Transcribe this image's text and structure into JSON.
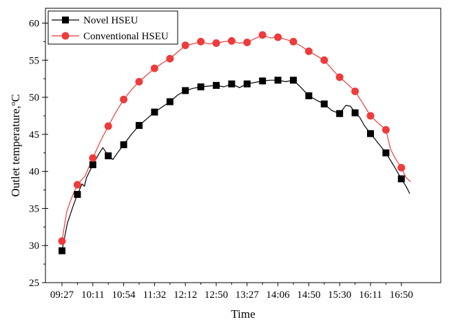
{
  "chart_data": {
    "type": "line",
    "xlabel": "Time",
    "ylabel": "Outlet temperature,",
    "ylabel_unit": "oC",
    "ylabel_sup": "o",
    "ylabel_tail": "C",
    "ylim": [
      25,
      62
    ],
    "yticks": [
      25,
      30,
      35,
      40,
      45,
      50,
      55,
      60
    ],
    "xtick_labels": [
      "09:27",
      "10:11",
      "10:54",
      "11:32",
      "12:12",
      "12:50",
      "13:27",
      "14:06",
      "14:50",
      "15:30",
      "16:11",
      "16:50"
    ],
    "grid": false,
    "legend_position": "top-left",
    "series": [
      {
        "name": "Novel HSEU",
        "color": "#000000",
        "marker": "square",
        "markers": [
          [
            0,
            29.3
          ],
          [
            1,
            36.9
          ],
          [
            2,
            40.9
          ],
          [
            3,
            42.1
          ],
          [
            4,
            43.6
          ],
          [
            5,
            46.2
          ],
          [
            6,
            48.0
          ],
          [
            7,
            49.4
          ],
          [
            8,
            50.9
          ],
          [
            9,
            51.4
          ],
          [
            10,
            51.6
          ],
          [
            11,
            51.8
          ],
          [
            12,
            51.8
          ],
          [
            13,
            52.2
          ],
          [
            14,
            52.3
          ],
          [
            15,
            52.3
          ],
          [
            16,
            50.2
          ],
          [
            17,
            49.1
          ],
          [
            18,
            47.8
          ],
          [
            19,
            47.9
          ],
          [
            20,
            45.1
          ],
          [
            21,
            42.5
          ],
          [
            22,
            39.0
          ]
        ],
        "line": [
          [
            0,
            29.3
          ],
          [
            0.35,
            33.0
          ],
          [
            0.7,
            35.2
          ],
          [
            1,
            36.9
          ],
          [
            1.3,
            38.3
          ],
          [
            1.45,
            38.0
          ],
          [
            1.6,
            39.2
          ],
          [
            2,
            40.9
          ],
          [
            2.4,
            42.4
          ],
          [
            2.65,
            43.2
          ],
          [
            2.85,
            42.6
          ],
          [
            3,
            42.1
          ],
          [
            3.3,
            41.6
          ],
          [
            3.6,
            42.5
          ],
          [
            4,
            43.6
          ],
          [
            4.5,
            45.0
          ],
          [
            5,
            46.2
          ],
          [
            5.5,
            47.1
          ],
          [
            6,
            48.0
          ],
          [
            6.5,
            48.7
          ],
          [
            7,
            49.4
          ],
          [
            7.5,
            50.3
          ],
          [
            8,
            50.9
          ],
          [
            8.5,
            51.2
          ],
          [
            9,
            51.4
          ],
          [
            9.5,
            51.5
          ],
          [
            10,
            51.6
          ],
          [
            10.5,
            51.4
          ],
          [
            11,
            51.8
          ],
          [
            11.5,
            51.3
          ],
          [
            12,
            51.8
          ],
          [
            12.5,
            52.0
          ],
          [
            13,
            52.2
          ],
          [
            13.5,
            52.3
          ],
          [
            14,
            52.3
          ],
          [
            14.5,
            52.1
          ],
          [
            15,
            52.3
          ],
          [
            15.5,
            51.3
          ],
          [
            16,
            50.2
          ],
          [
            16.5,
            49.6
          ],
          [
            17,
            49.1
          ],
          [
            17.5,
            48.2
          ],
          [
            18,
            47.8
          ],
          [
            18.4,
            48.9
          ],
          [
            18.7,
            48.8
          ],
          [
            19,
            47.9
          ],
          [
            19.3,
            47.3
          ],
          [
            19.6,
            46.2
          ],
          [
            20,
            45.1
          ],
          [
            20.5,
            43.8
          ],
          [
            21,
            42.5
          ],
          [
            21.5,
            40.8
          ],
          [
            22,
            39.0
          ],
          [
            22.3,
            38.0
          ],
          [
            22.55,
            37.0
          ]
        ]
      },
      {
        "name": "Conventional HSEU",
        "color": "#ee3b3b",
        "marker": "circle",
        "markers": [
          [
            0,
            30.6
          ],
          [
            1,
            38.2
          ],
          [
            2,
            41.8
          ],
          [
            3,
            46.1
          ],
          [
            4,
            49.7
          ],
          [
            5,
            52.1
          ],
          [
            6,
            53.9
          ],
          [
            7,
            55.2
          ],
          [
            8,
            57.0
          ],
          [
            9,
            57.5
          ],
          [
            10,
            57.3
          ],
          [
            11,
            57.6
          ],
          [
            12,
            57.4
          ],
          [
            13,
            58.4
          ],
          [
            14,
            58.1
          ],
          [
            15,
            57.5
          ],
          [
            16,
            56.2
          ],
          [
            17,
            55.0
          ],
          [
            18,
            52.7
          ],
          [
            19,
            50.8
          ],
          [
            20,
            47.5
          ],
          [
            21,
            45.6
          ],
          [
            22,
            40.5
          ]
        ],
        "line": [
          [
            0,
            30.6
          ],
          [
            0.3,
            34.5
          ],
          [
            0.6,
            36.3
          ],
          [
            1,
            38.2
          ],
          [
            1.5,
            39.4
          ],
          [
            2,
            41.8
          ],
          [
            2.5,
            44.1
          ],
          [
            3,
            46.1
          ],
          [
            3.5,
            48.0
          ],
          [
            4,
            49.7
          ],
          [
            4.5,
            51.0
          ],
          [
            5,
            52.1
          ],
          [
            5.5,
            53.0
          ],
          [
            6,
            53.9
          ],
          [
            6.5,
            54.6
          ],
          [
            7,
            55.2
          ],
          [
            7.5,
            56.1
          ],
          [
            8,
            57.0
          ],
          [
            8.5,
            57.2
          ],
          [
            9,
            57.5
          ],
          [
            9.5,
            57.2
          ],
          [
            10,
            57.3
          ],
          [
            10.5,
            57.5
          ],
          [
            11,
            57.6
          ],
          [
            11.5,
            57.3
          ],
          [
            12,
            57.4
          ],
          [
            12.5,
            57.9
          ],
          [
            13,
            58.4
          ],
          [
            13.5,
            58.0
          ],
          [
            14,
            58.1
          ],
          [
            14.5,
            57.8
          ],
          [
            15,
            57.5
          ],
          [
            15.5,
            56.9
          ],
          [
            16,
            56.2
          ],
          [
            16.5,
            55.6
          ],
          [
            17,
            55.0
          ],
          [
            17.5,
            53.8
          ],
          [
            18,
            52.7
          ],
          [
            18.5,
            51.8
          ],
          [
            19,
            50.8
          ],
          [
            19.5,
            49.2
          ],
          [
            20,
            47.5
          ],
          [
            20.5,
            46.5
          ],
          [
            21,
            45.6
          ],
          [
            21.3,
            43.0
          ],
          [
            21.6,
            41.8
          ],
          [
            22,
            40.5
          ],
          [
            22.3,
            39.2
          ],
          [
            22.6,
            38.6
          ]
        ]
      }
    ]
  }
}
